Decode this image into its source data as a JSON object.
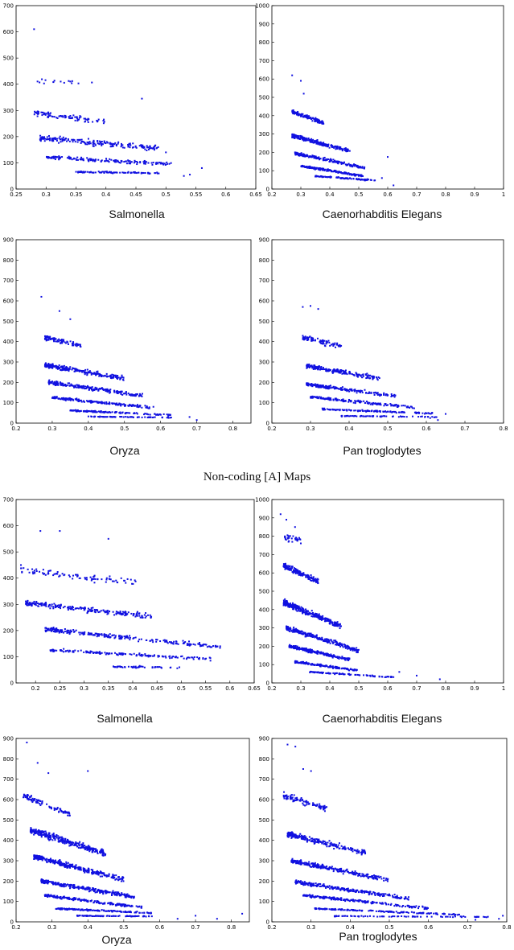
{
  "section_title": "Non-coding [A] Maps",
  "point_color": "#1010e0",
  "chart_data": [
    {
      "type": "scatter",
      "title": "Salmonella",
      "xlim": [
        0.25,
        0.65
      ],
      "ylim": [
        0,
        700
      ],
      "xticks": [
        "0.25",
        "0.3",
        "0.35",
        "0.4",
        "0.45",
        "0.5",
        "0.55",
        "0.6",
        "0.65"
      ],
      "yticks": [
        "0",
        "100",
        "200",
        "300",
        "400",
        "500",
        "600",
        "700"
      ],
      "bands": [
        {
          "y": 410,
          "x": [
            0.28,
            0.38
          ],
          "slope": -30,
          "spread": 14,
          "n": 16
        },
        {
          "y": 290,
          "x": [
            0.28,
            0.4
          ],
          "slope": -280,
          "spread": 14,
          "n": 90
        },
        {
          "y": 195,
          "x": [
            0.29,
            0.49
          ],
          "slope": -200,
          "spread": 16,
          "n": 200
        },
        {
          "y": 122,
          "x": [
            0.3,
            0.51
          ],
          "slope": -130,
          "spread": 9,
          "n": 160
        },
        {
          "y": 65,
          "x": [
            0.35,
            0.49
          ],
          "slope": -30,
          "spread": 4,
          "n": 90
        }
      ],
      "points": [
        [
          0.28,
          610
        ],
        [
          0.46,
          345
        ],
        [
          0.53,
          50
        ],
        [
          0.54,
          55
        ],
        [
          0.56,
          80
        ],
        [
          0.5,
          140
        ]
      ]
    },
    {
      "type": "scatter",
      "title": "Caenorhabditis Elegans",
      "xlim": [
        0.2,
        1.0
      ],
      "ylim": [
        0,
        1000
      ],
      "xticks": [
        "0.2",
        "0.3",
        "0.4",
        "0.5",
        "0.6",
        "0.7",
        "0.8",
        "0.9",
        "1"
      ],
      "yticks": [
        "0",
        "100",
        "200",
        "300",
        "400",
        "500",
        "600",
        "700",
        "800",
        "900",
        "1000"
      ],
      "bands": [
        {
          "y": 420,
          "x": [
            0.27,
            0.38
          ],
          "slope": -550,
          "spread": 16,
          "n": 120
        },
        {
          "y": 290,
          "x": [
            0.27,
            0.47
          ],
          "slope": -420,
          "spread": 16,
          "n": 220
        },
        {
          "y": 195,
          "x": [
            0.28,
            0.52
          ],
          "slope": -330,
          "spread": 12,
          "n": 200
        },
        {
          "y": 125,
          "x": [
            0.3,
            0.52
          ],
          "slope": -250,
          "spread": 9,
          "n": 160
        },
        {
          "y": 70,
          "x": [
            0.35,
            0.56
          ],
          "slope": -110,
          "spread": 5,
          "n": 100
        }
      ],
      "points": [
        [
          0.27,
          620
        ],
        [
          0.3,
          590
        ],
        [
          0.31,
          520
        ],
        [
          0.6,
          175
        ],
        [
          0.58,
          60
        ],
        [
          0.62,
          20
        ]
      ]
    },
    {
      "type": "scatter",
      "title": "Oryza",
      "xlim": [
        0.2,
        0.85
      ],
      "ylim": [
        0,
        900
      ],
      "xticks": [
        "0.2",
        "0.3",
        "0.4",
        "0.5",
        "0.6",
        "0.7",
        "0.8"
      ],
      "yticks": [
        "0",
        "100",
        "200",
        "300",
        "400",
        "500",
        "600",
        "700",
        "800",
        "900"
      ],
      "bands": [
        {
          "y": 420,
          "x": [
            0.28,
            0.38
          ],
          "slope": -400,
          "spread": 18,
          "n": 90
        },
        {
          "y": 285,
          "x": [
            0.28,
            0.5
          ],
          "slope": -300,
          "spread": 16,
          "n": 220
        },
        {
          "y": 200,
          "x": [
            0.29,
            0.55
          ],
          "slope": -250,
          "spread": 14,
          "n": 220
        },
        {
          "y": 125,
          "x": [
            0.3,
            0.57
          ],
          "slope": -180,
          "spread": 9,
          "n": 180
        },
        {
          "y": 62,
          "x": [
            0.35,
            0.63
          ],
          "slope": -80,
          "spread": 5,
          "n": 130
        },
        {
          "y": 32,
          "x": [
            0.4,
            0.63
          ],
          "slope": -20,
          "spread": 3,
          "n": 70
        }
      ],
      "points": [
        [
          0.27,
          620
        ],
        [
          0.32,
          550
        ],
        [
          0.35,
          510
        ],
        [
          0.68,
          30
        ],
        [
          0.7,
          15
        ],
        [
          0.58,
          80
        ]
      ]
    },
    {
      "type": "scatter",
      "title": "Pan troglodytes",
      "xlim": [
        0.2,
        0.8
      ],
      "ylim": [
        0,
        900
      ],
      "xticks": [
        "0.2",
        "0.3",
        "0.4",
        "0.5",
        "0.6",
        "0.7",
        "0.8"
      ],
      "yticks": [
        "0",
        "100",
        "200",
        "300",
        "400",
        "500",
        "600",
        "700",
        "800",
        "900"
      ],
      "bands": [
        {
          "y": 420,
          "x": [
            0.28,
            0.38
          ],
          "slope": -420,
          "spread": 20,
          "n": 80
        },
        {
          "y": 280,
          "x": [
            0.29,
            0.48
          ],
          "slope": -320,
          "spread": 16,
          "n": 200
        },
        {
          "y": 190,
          "x": [
            0.29,
            0.52
          ],
          "slope": -250,
          "spread": 12,
          "n": 200
        },
        {
          "y": 128,
          "x": [
            0.3,
            0.57
          ],
          "slope": -190,
          "spread": 9,
          "n": 170
        },
        {
          "y": 68,
          "x": [
            0.33,
            0.62
          ],
          "slope": -70,
          "spread": 5,
          "n": 130
        },
        {
          "y": 35,
          "x": [
            0.38,
            0.63
          ],
          "slope": -20,
          "spread": 3,
          "n": 60
        }
      ],
      "points": [
        [
          0.28,
          570
        ],
        [
          0.3,
          575
        ],
        [
          0.32,
          560
        ],
        [
          0.65,
          45
        ],
        [
          0.63,
          15
        ],
        [
          0.61,
          25
        ]
      ]
    },
    {
      "type": "scatter",
      "title": "Salmonella",
      "xlim": [
        0.16,
        0.65
      ],
      "ylim": [
        0,
        700
      ],
      "xticks": [
        "0.2",
        "0.25",
        "0.3",
        "0.35",
        "0.4",
        "0.45",
        "0.5",
        "0.55",
        "0.6",
        "0.65"
      ],
      "yticks": [
        "0",
        "100",
        "200",
        "300",
        "400",
        "500",
        "600",
        "700"
      ],
      "bands": [
        {
          "y": 430,
          "x": [
            0.17,
            0.41
          ],
          "slope": -200,
          "spread": 18,
          "n": 90
        },
        {
          "y": 305,
          "x": [
            0.18,
            0.44
          ],
          "slope": -200,
          "spread": 14,
          "n": 230
        },
        {
          "y": 205,
          "x": [
            0.22,
            0.58
          ],
          "slope": -190,
          "spread": 12,
          "n": 240
        },
        {
          "y": 125,
          "x": [
            0.23,
            0.56
          ],
          "slope": -100,
          "spread": 8,
          "n": 160
        },
        {
          "y": 62,
          "x": [
            0.36,
            0.5
          ],
          "slope": -30,
          "spread": 5,
          "n": 50
        }
      ],
      "points": [
        [
          0.21,
          580
        ],
        [
          0.25,
          580
        ],
        [
          0.35,
          550
        ],
        [
          0.17,
          450
        ],
        [
          0.58,
          140
        ],
        [
          0.56,
          85
        ]
      ]
    },
    {
      "type": "scatter",
      "title": "Caenorhabditis Elegans",
      "xlim": [
        0.2,
        1.0
      ],
      "ylim": [
        0,
        1000
      ],
      "xticks": [
        "0.2",
        "0.3",
        "0.4",
        "0.5",
        "0.6",
        "0.7",
        "0.8",
        "0.9",
        "1"
      ],
      "yticks": [
        "0",
        "100",
        "200",
        "300",
        "400",
        "500",
        "600",
        "700",
        "800",
        "900",
        "1000"
      ],
      "bands": [
        {
          "y": 800,
          "x": [
            0.24,
            0.3
          ],
          "slope": -500,
          "spread": 30,
          "n": 30
        },
        {
          "y": 640,
          "x": [
            0.24,
            0.36
          ],
          "slope": -700,
          "spread": 22,
          "n": 160
        },
        {
          "y": 440,
          "x": [
            0.24,
            0.44
          ],
          "slope": -650,
          "spread": 22,
          "n": 280
        },
        {
          "y": 300,
          "x": [
            0.25,
            0.5
          ],
          "slope": -500,
          "spread": 18,
          "n": 260
        },
        {
          "y": 200,
          "x": [
            0.26,
            0.47
          ],
          "slope": -350,
          "spread": 12,
          "n": 200
        },
        {
          "y": 115,
          "x": [
            0.28,
            0.5
          ],
          "slope": -220,
          "spread": 8,
          "n": 150
        },
        {
          "y": 60,
          "x": [
            0.33,
            0.62
          ],
          "slope": -100,
          "spread": 5,
          "n": 90
        }
      ],
      "points": [
        [
          0.23,
          920
        ],
        [
          0.28,
          850
        ],
        [
          0.25,
          890
        ],
        [
          0.7,
          40
        ],
        [
          0.78,
          20
        ],
        [
          0.64,
          60
        ]
      ]
    },
    {
      "type": "scatter",
      "title": "Oryza",
      "xlim": [
        0.2,
        0.85
      ],
      "ylim": [
        0,
        900
      ],
      "xticks": [
        "0.2",
        "0.3",
        "0.4",
        "0.5",
        "0.6",
        "0.7",
        "0.8"
      ],
      "yticks": [
        "0",
        "100",
        "200",
        "300",
        "400",
        "500",
        "600",
        "700",
        "800",
        "900"
      ],
      "bands": [
        {
          "y": 620,
          "x": [
            0.22,
            0.35
          ],
          "slope": -700,
          "spread": 22,
          "n": 100
        },
        {
          "y": 450,
          "x": [
            0.24,
            0.45
          ],
          "slope": -550,
          "spread": 22,
          "n": 300
        },
        {
          "y": 320,
          "x": [
            0.25,
            0.5
          ],
          "slope": -450,
          "spread": 18,
          "n": 300
        },
        {
          "y": 200,
          "x": [
            0.27,
            0.53
          ],
          "slope": -300,
          "spread": 14,
          "n": 260
        },
        {
          "y": 130,
          "x": [
            0.28,
            0.55
          ],
          "slope": -220,
          "spread": 9,
          "n": 200
        },
        {
          "y": 65,
          "x": [
            0.31,
            0.58
          ],
          "slope": -80,
          "spread": 5,
          "n": 150
        },
        {
          "y": 30,
          "x": [
            0.37,
            0.58
          ],
          "slope": -15,
          "spread": 3,
          "n": 80
        }
      ],
      "points": [
        [
          0.23,
          880
        ],
        [
          0.26,
          780
        ],
        [
          0.29,
          730
        ],
        [
          0.4,
          740
        ],
        [
          0.83,
          40
        ],
        [
          0.7,
          30
        ],
        [
          0.76,
          15
        ],
        [
          0.65,
          15
        ]
      ]
    },
    {
      "type": "scatter",
      "title": "Pan troglodytes",
      "xlim": [
        0.2,
        0.8
      ],
      "ylim": [
        0,
        900
      ],
      "xticks": [
        "0.2",
        "0.3",
        "0.4",
        "0.5",
        "0.6",
        "0.7",
        "0.8"
      ],
      "yticks": [
        "0",
        "100",
        "200",
        "300",
        "400",
        "500",
        "600",
        "700",
        "800",
        "900"
      ],
      "bands": [
        {
          "y": 620,
          "x": [
            0.23,
            0.34
          ],
          "slope": -600,
          "spread": 25,
          "n": 90
        },
        {
          "y": 430,
          "x": [
            0.24,
            0.44
          ],
          "slope": -450,
          "spread": 20,
          "n": 220
        },
        {
          "y": 300,
          "x": [
            0.25,
            0.5
          ],
          "slope": -380,
          "spread": 16,
          "n": 240
        },
        {
          "y": 195,
          "x": [
            0.26,
            0.55
          ],
          "slope": -280,
          "spread": 12,
          "n": 240
        },
        {
          "y": 130,
          "x": [
            0.28,
            0.6
          ],
          "slope": -200,
          "spread": 9,
          "n": 200
        },
        {
          "y": 65,
          "x": [
            0.31,
            0.68
          ],
          "slope": -80,
          "spread": 5,
          "n": 160
        },
        {
          "y": 28,
          "x": [
            0.36,
            0.76
          ],
          "slope": -10,
          "spread": 3,
          "n": 80
        }
      ],
      "points": [
        [
          0.24,
          870
        ],
        [
          0.26,
          860
        ],
        [
          0.28,
          750
        ],
        [
          0.3,
          740
        ],
        [
          0.78,
          15
        ],
        [
          0.72,
          10
        ],
        [
          0.79,
          30
        ]
      ]
    }
  ],
  "captions": [
    "Salmonella",
    "Caenorhabditis Elegans",
    "Oryza",
    "Pan troglodytes",
    "Salmonella",
    "Caenorhabditis Elegans",
    "Oryza",
    "Pan troglodytes"
  ]
}
